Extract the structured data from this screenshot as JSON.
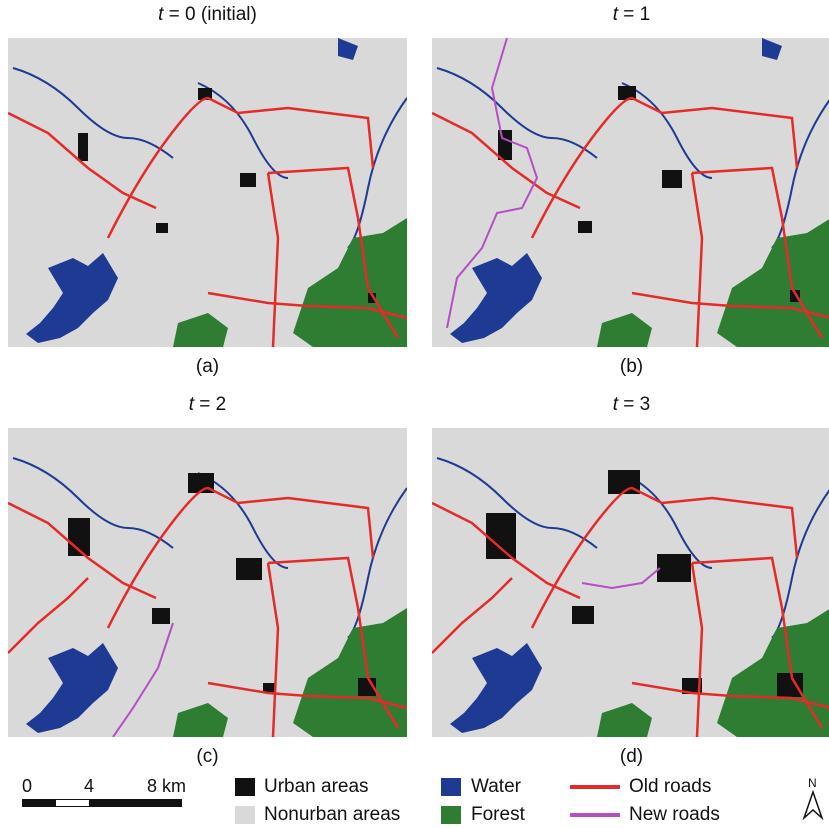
{
  "panels": [
    {
      "id": "a",
      "title_var": "t",
      "title_rest": " = 0 (initial)",
      "letter": "(a)"
    },
    {
      "id": "b",
      "title_var": "t",
      "title_rest": " = 1",
      "letter": "(b)"
    },
    {
      "id": "c",
      "title_var": "t",
      "title_rest": " = 2",
      "letter": "(c)"
    },
    {
      "id": "d",
      "title_var": "t",
      "title_rest": " = 3",
      "letter": "(d)"
    }
  ],
  "scale": {
    "labels": [
      "0",
      "4",
      "8 km"
    ]
  },
  "legend": {
    "urban": "Urban areas",
    "nonurban": "Nonurban areas",
    "water": "Water",
    "forest": "Forest",
    "old_roads": "Old roads",
    "new_roads": "New roads"
  },
  "north_label": "N",
  "colors": {
    "urban": "#111111",
    "nonurban": "#d9d9d9",
    "water": "#1f3a93",
    "forest": "#2e7d32",
    "old_roads": "#e52a2a",
    "new_roads": "#b44fc4"
  }
}
